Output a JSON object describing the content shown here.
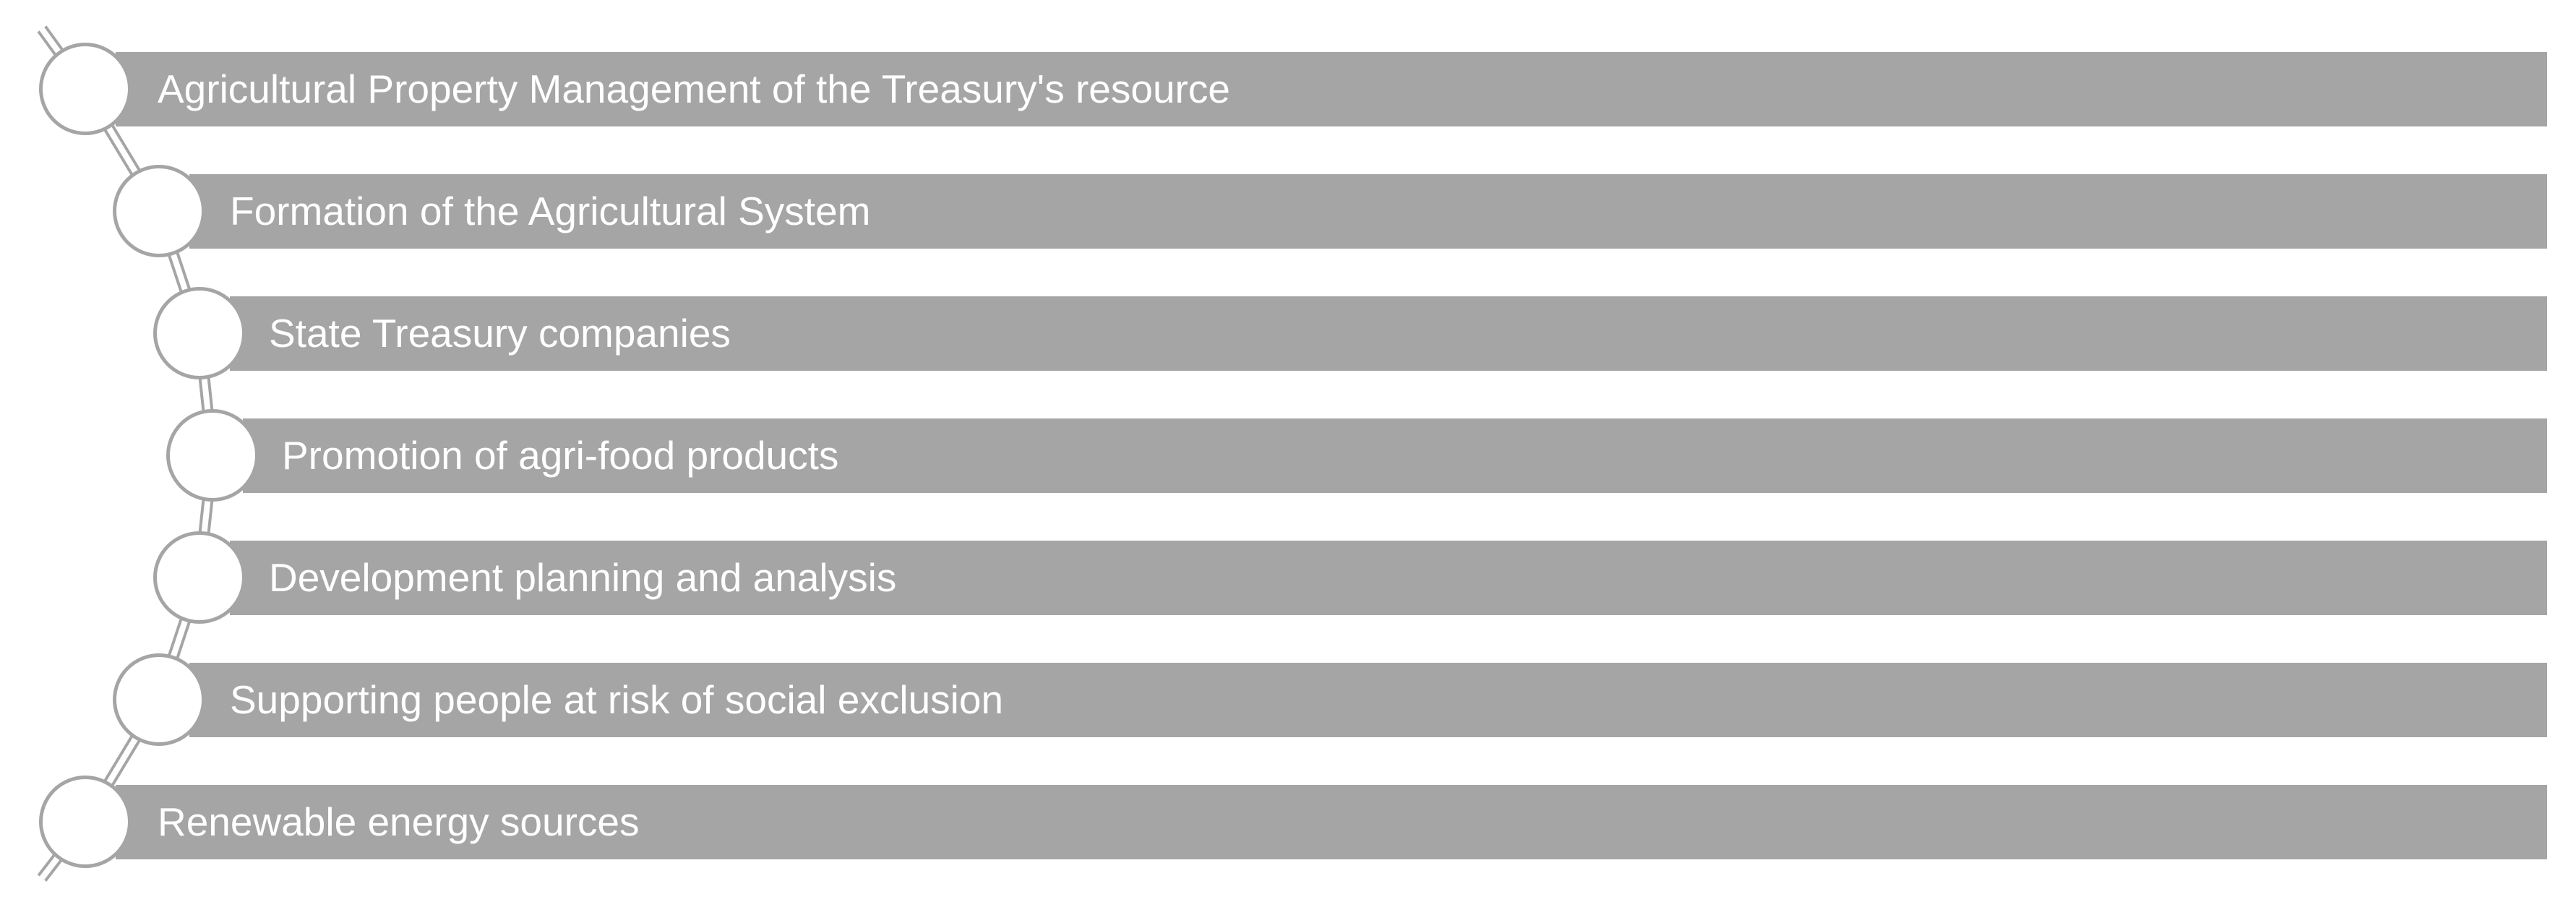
{
  "diagram": {
    "items": [
      {
        "label": "Agricultural Property Management of the Treasury's resource"
      },
      {
        "label": "Formation of the Agricultural System"
      },
      {
        "label": "State Treasury companies"
      },
      {
        "label": "Promotion of agri-food products"
      },
      {
        "label": "Development planning and analysis"
      },
      {
        "label": "Supporting people at risk of social exclusion"
      },
      {
        "label": "Renewable energy sources"
      }
    ],
    "colors": {
      "bar": "#a5a5a5",
      "text": "#ffffff",
      "node_fill": "#ffffff",
      "connector": "#a5a5a5"
    }
  }
}
